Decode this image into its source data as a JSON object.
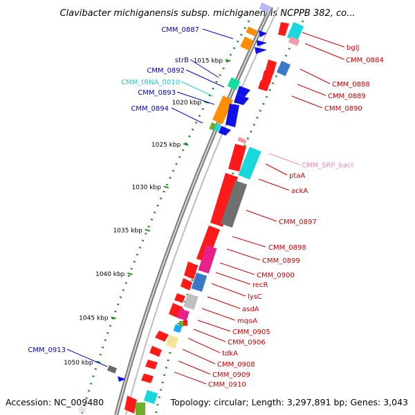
{
  "title": "Clavibacter michiganensis subsp. michiganensis NCPPB 382, co...",
  "footer": {
    "accession": "Accession: NC_009480",
    "topology": "Topology: circular; Length: 3,297,891 bp; Genes: 3,043"
  },
  "colors": {
    "plus_label": "#0000cc",
    "minus_label": "#cc0000",
    "trna_label": "#1cc8dc",
    "srp_label": "#ee88bb",
    "backbone": "#8a8a8a",
    "tick": "#1a8a1a"
  },
  "kbp_ticks": [
    "1015 kbp",
    "1020 kbp",
    "1025 kbp",
    "1030 kbp",
    "1035 kbp",
    "1040 kbp",
    "1045 kbp",
    "1050 kbp"
  ],
  "labels_left": [
    {
      "text": "CMM_0887",
      "kind": "plus"
    },
    {
      "text": "strB",
      "kind": "plus"
    },
    {
      "text": "CMM_0892",
      "kind": "plus"
    },
    {
      "text": "CMM_tRNA_0010",
      "kind": "trna"
    },
    {
      "text": "CMM_0893",
      "kind": "plus"
    },
    {
      "text": "CMM_0894",
      "kind": "plus"
    },
    {
      "text": "CMM_0913",
      "kind": "plus"
    }
  ],
  "labels_right": [
    {
      "text": "bglJ",
      "kind": "minus"
    },
    {
      "text": "CMM_0884",
      "kind": "minus"
    },
    {
      "text": "CMM_0888",
      "kind": "minus"
    },
    {
      "text": "CMM_0889",
      "kind": "minus"
    },
    {
      "text": "CMM_0890",
      "kind": "minus"
    },
    {
      "text": "CMM_SRP_bact",
      "kind": "srp"
    },
    {
      "text": "ptaA",
      "kind": "minus"
    },
    {
      "text": "ackA",
      "kind": "minus"
    },
    {
      "text": "CMM_0897",
      "kind": "minus"
    },
    {
      "text": "CMM_0898",
      "kind": "minus"
    },
    {
      "text": "CMM_0899",
      "kind": "minus"
    },
    {
      "text": "CMM_0900",
      "kind": "minus"
    },
    {
      "text": "recR",
      "kind": "minus"
    },
    {
      "text": "lysC",
      "kind": "minus"
    },
    {
      "text": "asdA",
      "kind": "minus"
    },
    {
      "text": "mqoA",
      "kind": "minus"
    },
    {
      "text": "CMM_0905",
      "kind": "minus"
    },
    {
      "text": "CMM_0906",
      "kind": "minus"
    },
    {
      "text": "tdkA",
      "kind": "minus"
    },
    {
      "text": "CMM_0908",
      "kind": "minus"
    },
    {
      "text": "CMM_0909",
      "kind": "minus"
    },
    {
      "text": "CMM_0910",
      "kind": "minus"
    }
  ]
}
